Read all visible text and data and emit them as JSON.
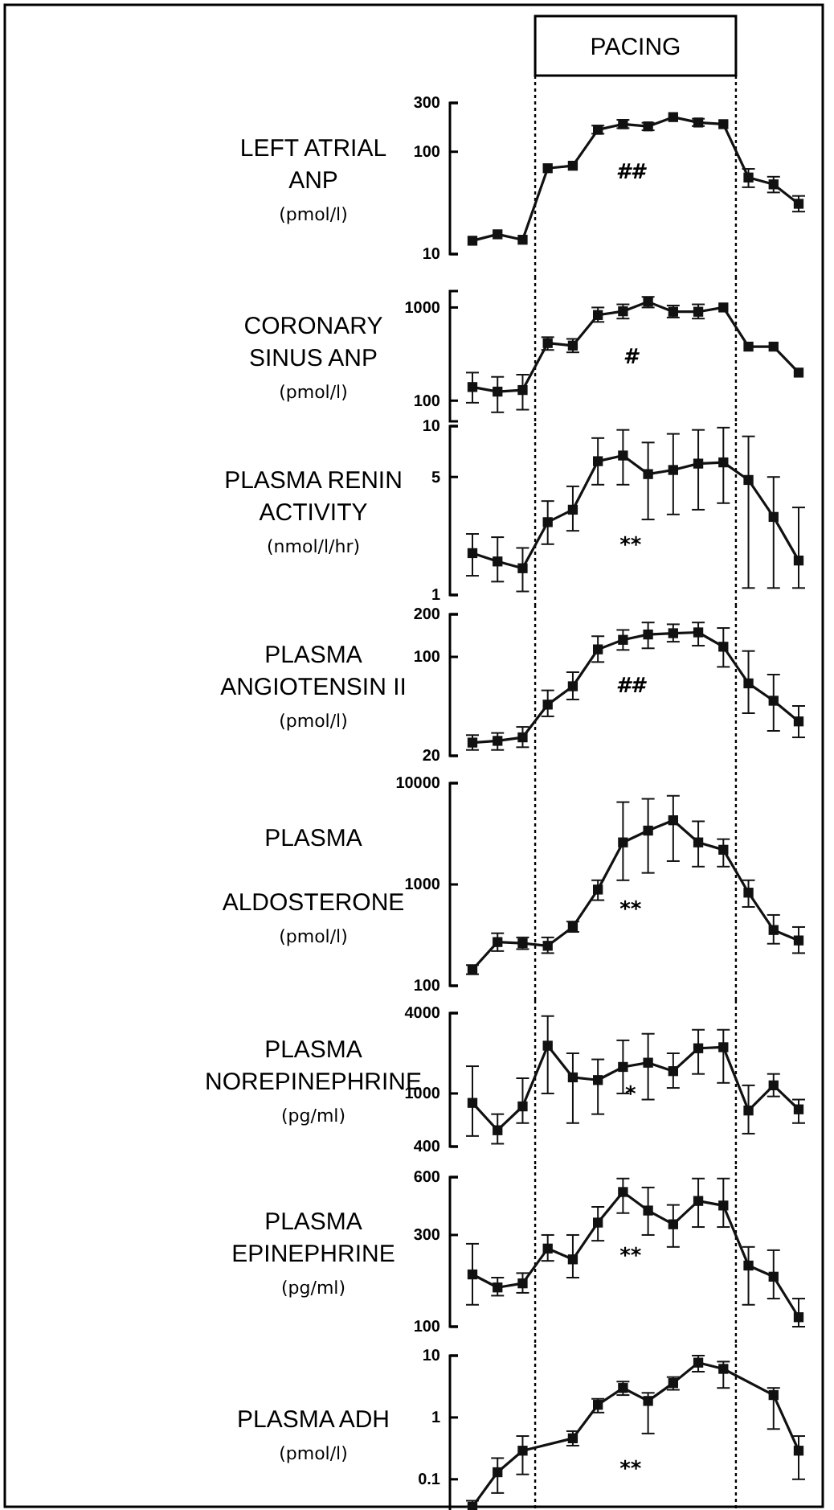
{
  "chart_data": [
    {
      "type": "line",
      "title": "LEFT ATRIAL\nANP",
      "ylabel": "(pmol/l)",
      "log": "y",
      "marker": "square",
      "line_style": "solid",
      "tick_labels": "y",
      "color": "#111111",
      "categories": [
        null,
        null,
        null,
        null,
        null,
        null,
        null,
        null,
        null,
        null,
        null,
        null,
        null,
        null
      ],
      "ylim": [
        10,
        300
      ],
      "yticks": [
        10,
        100,
        300
      ],
      "values": [
        13.5,
        15.6,
        13.8,
        69,
        73,
        164,
        186,
        177,
        218,
        193,
        186,
        56,
        48,
        31
      ],
      "errors": [
        null,
        null,
        null,
        null,
        null,
        [
          150,
          180
        ],
        [
          170,
          205
        ],
        [
          162,
          192
        ],
        null,
        [
          178,
          210
        ],
        null,
        [
          45,
          68
        ],
        [
          40,
          57
        ],
        [
          26,
          37
        ]
      ],
      "annotations": [
        "PACING",
        "##"
      ]
    },
    {
      "type": "line",
      "title": "CORONARY\nSINUS ANP",
      "ylabel": "(pmol/l)",
      "log": "y",
      "marker": "square",
      "line_style": "solid",
      "tick_labels": "y",
      "color": "#111111",
      "categories": [
        null,
        null,
        null,
        null,
        null,
        null,
        null,
        null,
        null,
        null,
        null,
        null,
        null,
        null
      ],
      "ylim": [
        60,
        1500
      ],
      "yticks": [
        100,
        1000
      ],
      "values": [
        140,
        125,
        130,
        415,
        390,
        830,
        910,
        1150,
        900,
        900,
        1000,
        380,
        380,
        200
      ],
      "errors": [
        [
          95,
          200
        ],
        [
          75,
          180
        ],
        [
          80,
          190
        ],
        [
          350,
          480
        ],
        [
          330,
          460
        ],
        [
          700,
          1000
        ],
        [
          760,
          1080
        ],
        [
          1000,
          1300
        ],
        [
          780,
          1050
        ],
        [
          760,
          1080
        ],
        null,
        null,
        null,
        null
      ],
      "annotations": [
        "#"
      ]
    },
    {
      "type": "line",
      "title": "PLASMA RENIN\nACTIVITY",
      "ylabel": "(nmol/l/hr)",
      "log": "y",
      "marker": "square",
      "line_style": "solid",
      "tick_labels": "y",
      "color": "#111111",
      "categories": [
        null,
        null,
        null,
        null,
        null,
        null,
        null,
        null,
        null,
        null,
        null,
        null,
        null,
        null
      ],
      "ylim": [
        1,
        10
      ],
      "yticks": [
        1,
        5,
        10
      ],
      "values": [
        1.77,
        1.58,
        1.44,
        2.7,
        3.2,
        6.2,
        6.7,
        5.2,
        5.5,
        6.0,
        6.1,
        4.8,
        2.9,
        1.6
      ],
      "errors": [
        [
          1.3,
          2.3
        ],
        [
          1.2,
          2.2
        ],
        [
          1.05,
          1.9
        ],
        [
          2.0,
          3.6
        ],
        [
          2.4,
          4.4
        ],
        [
          4.5,
          8.5
        ],
        [
          4.5,
          9.5
        ],
        [
          2.8,
          8
        ],
        [
          3,
          9
        ],
        [
          3.2,
          9.5
        ],
        [
          3.5,
          9.8
        ],
        [
          1.1,
          8.7
        ],
        [
          1.1,
          5.0
        ],
        [
          1.1,
          3.3
        ]
      ],
      "annotations": [
        "**"
      ]
    },
    {
      "type": "line",
      "title": "PLASMA\nANGIOTENSIN II",
      "ylabel": "(pmol/l)",
      "log": "y",
      "marker": "square",
      "line_style": "solid",
      "tick_labels": "y",
      "color": "#111111",
      "categories": [
        null,
        null,
        null,
        null,
        null,
        null,
        null,
        null,
        null,
        null,
        null,
        null,
        null,
        null
      ],
      "ylim": [
        20,
        200
      ],
      "yticks": [
        20,
        100,
        200
      ],
      "values": [
        24.8,
        25.5,
        27,
        46,
        62,
        113,
        132,
        144,
        147,
        149,
        118,
        65,
        49,
        35
      ],
      "errors": [
        [
          22,
          28
        ],
        [
          22,
          29
        ],
        [
          23,
          32
        ],
        [
          38,
          58
        ],
        [
          50,
          78
        ],
        [
          92,
          140
        ],
        [
          112,
          155
        ],
        [
          115,
          175
        ],
        [
          128,
          170
        ],
        [
          120,
          175
        ],
        [
          85,
          160
        ],
        [
          40,
          110
        ],
        [
          30,
          75
        ],
        [
          27,
          45
        ]
      ],
      "annotations": [
        "##"
      ]
    },
    {
      "type": "line",
      "title": "PLASMA\n\nALDOSTERONE",
      "ylabel": "(pmol/l)",
      "log": "y",
      "marker": "square",
      "line_style": "solid",
      "tick_labels": "y",
      "color": "#111111",
      "categories": [
        null,
        null,
        null,
        null,
        null,
        null,
        null,
        null,
        null,
        null,
        null,
        null,
        null,
        null
      ],
      "ylim": [
        100,
        10000
      ],
      "yticks": [
        100,
        1000,
        10000
      ],
      "values": [
        144,
        270,
        263,
        248,
        380,
        890,
        2600,
        3400,
        4300,
        2600,
        2200,
        830,
        355,
        280
      ],
      "errors": [
        [
          130,
          160
        ],
        [
          220,
          330
        ],
        [
          230,
          300
        ],
        [
          210,
          300
        ],
        [
          340,
          430
        ],
        [
          700,
          1100
        ],
        [
          1100,
          6500
        ],
        [
          1300,
          7000
        ],
        [
          1700,
          7500
        ],
        [
          1500,
          4200
        ],
        [
          1500,
          2800
        ],
        [
          600,
          1100
        ],
        [
          260,
          500
        ],
        [
          210,
          380
        ]
      ],
      "annotations": [
        "**"
      ]
    },
    {
      "type": "line",
      "title": "PLASMA\nNOREPINEPHRINE",
      "ylabel": "(pg/ml)",
      "log": "y",
      "marker": "square",
      "line_style": "solid",
      "tick_labels": "y",
      "color": "#111111",
      "categories": [
        null,
        null,
        null,
        null,
        null,
        null,
        null,
        null,
        null,
        null,
        null,
        null,
        null,
        null
      ],
      "ylim": [
        400,
        4000
      ],
      "yticks": [
        400,
        1000,
        4000
      ],
      "values": [
        850,
        530,
        800,
        2280,
        1320,
        1260,
        1580,
        1700,
        1470,
        2180,
        2220,
        745,
        1150,
        760
      ],
      "errors": [
        [
          480,
          1600
        ],
        [
          420,
          700
        ],
        [
          600,
          1300
        ],
        [
          1000,
          3800
        ],
        [
          600,
          2000
        ],
        [
          700,
          1800
        ],
        [
          1000,
          2500
        ],
        [
          900,
          2800
        ],
        [
          1100,
          2000
        ],
        [
          1400,
          3000
        ],
        [
          1200,
          3000
        ],
        [
          500,
          1150
        ],
        [
          950,
          1400
        ],
        [
          600,
          900
        ]
      ],
      "annotations": [
        "*"
      ]
    },
    {
      "type": "line",
      "title": "PLASMA\nEPINEPHRINE",
      "ylabel": "(pg/ml)",
      "log": "y",
      "marker": "square",
      "line_style": "solid",
      "tick_labels": "y",
      "color": "#111111",
      "categories": [
        null,
        null,
        null,
        null,
        null,
        null,
        null,
        null,
        null,
        null,
        null,
        null,
        null,
        null
      ],
      "ylim": [
        100,
        600
      ],
      "yticks": [
        100,
        300,
        600
      ],
      "values": [
        187,
        160,
        168,
        255,
        224,
        348,
        502,
        402,
        341,
        451,
        427,
        208,
        182,
        112
      ],
      "errors": [
        [
          130,
          270
        ],
        [
          145,
          180
        ],
        [
          150,
          190
        ],
        [
          220,
          300
        ],
        [
          180,
          300
        ],
        [
          280,
          420
        ],
        [
          390,
          590
        ],
        [
          300,
          530
        ],
        [
          260,
          430
        ],
        [
          330,
          590
        ],
        [
          330,
          590
        ],
        [
          130,
          260
        ],
        [
          140,
          250
        ],
        [
          100,
          140
        ]
      ],
      "annotations": [
        "**"
      ]
    },
    {
      "type": "line",
      "title": "PLASMA ADH",
      "ylabel": "(pmol/l)",
      "log": "y",
      "marker": "square",
      "line_style": "solid",
      "tick_labels": "y",
      "color": "#111111",
      "categories": [
        null,
        null,
        null,
        null,
        null,
        null,
        null,
        null,
        null,
        null,
        null,
        null,
        null,
        null
      ],
      "ylim": [
        0.03,
        10
      ],
      "yticks": [
        0.1,
        1,
        10
      ],
      "values": [
        0.036,
        0.13,
        0.29,
        null,
        0.46,
        1.6,
        3.0,
        1.85,
        3.6,
        7.7,
        6.1,
        null,
        2.3,
        0.29
      ],
      "errors": [
        [
          0.036,
          0.045
        ],
        [
          0.06,
          0.22
        ],
        [
          0.12,
          0.5
        ],
        null,
        [
          0.35,
          0.6
        ],
        [
          1.2,
          2.0
        ],
        [
          2.3,
          3.8
        ],
        [
          0.55,
          2.5
        ],
        [
          2.8,
          4.5
        ],
        [
          5.5,
          10
        ],
        [
          3,
          8
        ],
        null,
        [
          0.65,
          3.0
        ],
        [
          0.1,
          0.5
        ]
      ],
      "annotations": [
        "**"
      ]
    }
  ]
}
